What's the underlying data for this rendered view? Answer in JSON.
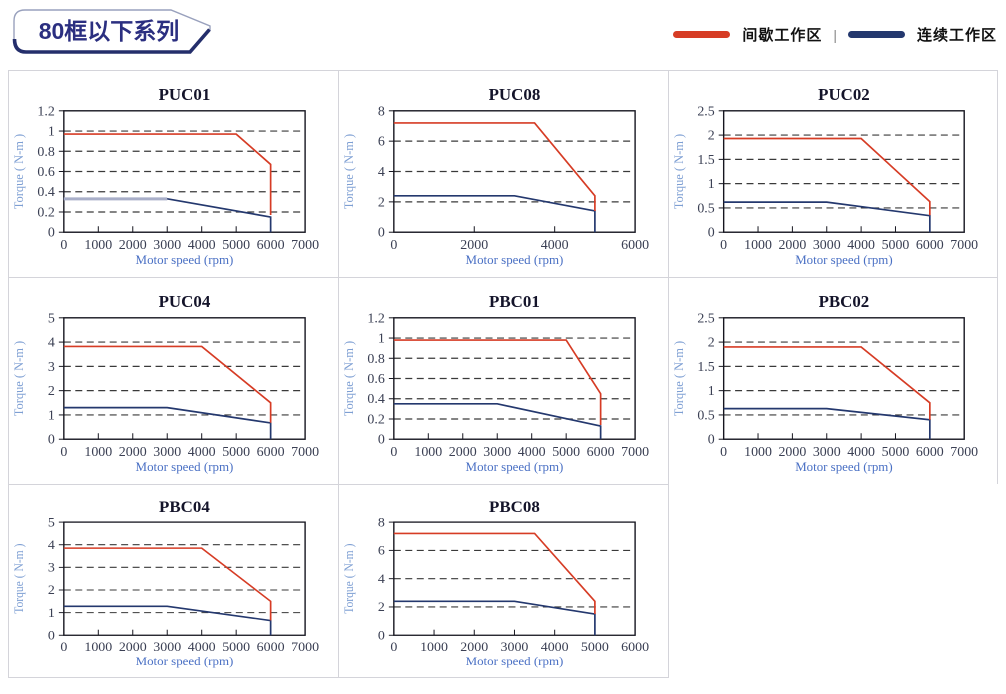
{
  "header": {
    "badge": {
      "label": "80框以下系列",
      "text_color": "#2b2f80",
      "border_color": "#99a1bd",
      "underline_color": "#242e6b"
    },
    "legend": {
      "items": [
        {
          "label": "间歇工作区",
          "color_key": "red"
        },
        {
          "label": "连续工作区",
          "color_key": "navy"
        }
      ],
      "separator": "|"
    }
  },
  "palette": {
    "red": "#d63c25",
    "navy": "#24386e",
    "light_flat": "#a8aec8",
    "grid_line": "#3a3a3a",
    "plot_border": "#15151f",
    "tick_label": "#3b4054",
    "title": "#14142a",
    "xlabel": "#4a70c4",
    "ylabel": "#7e9fd3",
    "panel_border": "#d4d4da"
  },
  "chart_data": [
    {
      "type": "line",
      "title": "PUC01",
      "xlabel": "Motor speed (rpm)",
      "ylabel": "Torque ( N-m )",
      "xlim": [
        0,
        7000
      ],
      "ylim": [
        0,
        1.2
      ],
      "x_ticks": [
        "0",
        "1000",
        "2000",
        "3000",
        "4000",
        "5000",
        "6000",
        "7000"
      ],
      "y_ticks": [
        "0",
        "0.2",
        "0.4",
        "0.6",
        "0.8",
        "1",
        "1.2"
      ],
      "grid": "dashed-horizontal",
      "series": [
        {
          "key": "intermittent",
          "name": "间歇工作区",
          "color": "red",
          "points": [
            [
              0,
              0.97
            ],
            [
              5000,
              0.97
            ],
            [
              6000,
              0.67
            ],
            [
              6000,
              0.17
            ]
          ]
        },
        {
          "key": "continuous",
          "name": "连续工作区",
          "color": "navy",
          "points": [
            [
              0,
              0.33
            ],
            [
              3000,
              0.33
            ],
            [
              6000,
              0.15
            ],
            [
              6000,
              0
            ]
          ]
        }
      ],
      "flat_highlight": {
        "x_end": 3000,
        "y": 0.33,
        "color": "light_flat"
      }
    },
    {
      "type": "line",
      "title": "PUC08",
      "xlabel": "Motor speed (rpm)",
      "ylabel": "Torque ( N-m )",
      "xlim": [
        0,
        6000
      ],
      "ylim": [
        0,
        8
      ],
      "x_ticks": [
        "0",
        "2000",
        "4000",
        "6000"
      ],
      "y_ticks": [
        "0",
        "2",
        "4",
        "6",
        "8"
      ],
      "grid": "dashed-horizontal",
      "series": [
        {
          "key": "intermittent",
          "name": "间歇工作区",
          "color": "red",
          "points": [
            [
              0,
              7.2
            ],
            [
              3500,
              7.2
            ],
            [
              5000,
              2.4
            ],
            [
              5000,
              1.4
            ]
          ]
        },
        {
          "key": "continuous",
          "name": "连续工作区",
          "color": "navy",
          "points": [
            [
              0,
              2.4
            ],
            [
              3000,
              2.4
            ],
            [
              5000,
              1.4
            ],
            [
              5000,
              0
            ]
          ]
        }
      ]
    },
    {
      "type": "line",
      "title": "PUC02",
      "xlabel": "Motor speed (rpm)",
      "ylabel": "Torque ( N-m )",
      "xlim": [
        0,
        7000
      ],
      "ylim": [
        0,
        2.5
      ],
      "x_ticks": [
        "0",
        "1000",
        "2000",
        "3000",
        "4000",
        "5000",
        "6000",
        "7000"
      ],
      "y_ticks": [
        "0",
        "0.5",
        "1",
        "1.5",
        "2",
        "2.5"
      ],
      "grid": "dashed-horizontal",
      "series": [
        {
          "key": "intermittent",
          "name": "间歇工作区",
          "color": "red",
          "points": [
            [
              0,
              1.93
            ],
            [
              4000,
              1.93
            ],
            [
              6000,
              0.63
            ],
            [
              6000,
              0.35
            ]
          ]
        },
        {
          "key": "continuous",
          "name": "连续工作区",
          "color": "navy",
          "points": [
            [
              0,
              0.62
            ],
            [
              3000,
              0.62
            ],
            [
              6000,
              0.34
            ],
            [
              6000,
              0
            ]
          ]
        }
      ]
    },
    {
      "type": "line",
      "title": "PUC04",
      "xlabel": "Motor speed (rpm)",
      "ylabel": "Torque ( N-m )",
      "xlim": [
        0,
        7000
      ],
      "ylim": [
        0,
        5
      ],
      "x_ticks": [
        "0",
        "1000",
        "2000",
        "3000",
        "4000",
        "5000",
        "6000",
        "7000"
      ],
      "y_ticks": [
        "0",
        "1",
        "2",
        "3",
        "4",
        "5"
      ],
      "grid": "dashed-horizontal",
      "series": [
        {
          "key": "intermittent",
          "name": "间歇工作区",
          "color": "red",
          "points": [
            [
              0,
              3.82
            ],
            [
              4000,
              3.82
            ],
            [
              6000,
              1.5
            ],
            [
              6000,
              0.68
            ]
          ]
        },
        {
          "key": "continuous",
          "name": "连续工作区",
          "color": "navy",
          "points": [
            [
              0,
              1.3
            ],
            [
              3000,
              1.3
            ],
            [
              6000,
              0.67
            ],
            [
              6000,
              0
            ]
          ]
        }
      ]
    },
    {
      "type": "line",
      "title": "PBC01",
      "xlabel": "Motor speed (rpm)",
      "ylabel": "Torque ( N-m )",
      "xlim": [
        0,
        7000
      ],
      "ylim": [
        0,
        1.2
      ],
      "x_ticks": [
        "0",
        "1000",
        "2000",
        "3000",
        "4000",
        "5000",
        "6000",
        "7000"
      ],
      "y_ticks": [
        "0",
        "0.2",
        "0.4",
        "0.6",
        "0.8",
        "1",
        "1.2"
      ],
      "grid": "dashed-horizontal",
      "series": [
        {
          "key": "intermittent",
          "name": "间歇工作区",
          "color": "red",
          "points": [
            [
              0,
              0.98
            ],
            [
              5000,
              0.98
            ],
            [
              6000,
              0.45
            ],
            [
              6000,
              0.14
            ]
          ]
        },
        {
          "key": "continuous",
          "name": "连续工作区",
          "color": "navy",
          "points": [
            [
              0,
              0.35
            ],
            [
              3000,
              0.35
            ],
            [
              6000,
              0.13
            ],
            [
              6000,
              0
            ]
          ]
        }
      ]
    },
    {
      "type": "line",
      "title": "PBC02",
      "xlabel": "Motor speed (rpm)",
      "ylabel": "Torque ( N-m )",
      "xlim": [
        0,
        7000
      ],
      "ylim": [
        0,
        2.5
      ],
      "x_ticks": [
        "0",
        "1000",
        "2000",
        "3000",
        "4000",
        "5000",
        "6000",
        "7000"
      ],
      "y_ticks": [
        "0",
        "0.5",
        "1",
        "1.5",
        "2",
        "2.5"
      ],
      "grid": "dashed-horizontal",
      "series": [
        {
          "key": "intermittent",
          "name": "间歇工作区",
          "color": "red",
          "points": [
            [
              0,
              1.9
            ],
            [
              4000,
              1.9
            ],
            [
              6000,
              0.75
            ],
            [
              6000,
              0.4
            ]
          ]
        },
        {
          "key": "continuous",
          "name": "连续工作区",
          "color": "navy",
          "points": [
            [
              0,
              0.63
            ],
            [
              3000,
              0.63
            ],
            [
              6000,
              0.4
            ],
            [
              6000,
              0
            ]
          ]
        }
      ]
    },
    {
      "type": "line",
      "title": "PBC04",
      "xlabel": "Motor speed (rpm)",
      "ylabel": "Torque ( N-m )",
      "xlim": [
        0,
        7000
      ],
      "ylim": [
        0,
        5
      ],
      "x_ticks": [
        "0",
        "1000",
        "2000",
        "3000",
        "4000",
        "5000",
        "6000",
        "7000"
      ],
      "y_ticks": [
        "0",
        "1",
        "2",
        "3",
        "4",
        "5"
      ],
      "grid": "dashed-horizontal",
      "series": [
        {
          "key": "intermittent",
          "name": "间歇工作区",
          "color": "red",
          "points": [
            [
              0,
              3.85
            ],
            [
              4000,
              3.85
            ],
            [
              6000,
              1.5
            ],
            [
              6000,
              0.66
            ]
          ]
        },
        {
          "key": "continuous",
          "name": "连续工作区",
          "color": "navy",
          "points": [
            [
              0,
              1.28
            ],
            [
              3000,
              1.28
            ],
            [
              6000,
              0.65
            ],
            [
              6000,
              0
            ]
          ]
        }
      ]
    },
    {
      "type": "line",
      "title": "PBC08",
      "xlabel": "Motor speed (rpm)",
      "ylabel": "Torque ( N-m )",
      "xlim": [
        0,
        6000
      ],
      "ylim": [
        0,
        8
      ],
      "x_ticks": [
        "0",
        "1000",
        "2000",
        "3000",
        "4000",
        "5000",
        "6000"
      ],
      "y_ticks": [
        "0",
        "2",
        "4",
        "6",
        "8"
      ],
      "grid": "dashed-horizontal",
      "series": [
        {
          "key": "intermittent",
          "name": "间歇工作区",
          "color": "red",
          "points": [
            [
              0,
              7.2
            ],
            [
              3500,
              7.2
            ],
            [
              5000,
              2.4
            ],
            [
              5000,
              1.5
            ]
          ]
        },
        {
          "key": "continuous",
          "name": "连续工作区",
          "color": "navy",
          "points": [
            [
              0,
              2.4
            ],
            [
              3000,
              2.4
            ],
            [
              5000,
              1.5
            ],
            [
              5000,
              0
            ]
          ]
        }
      ]
    }
  ]
}
